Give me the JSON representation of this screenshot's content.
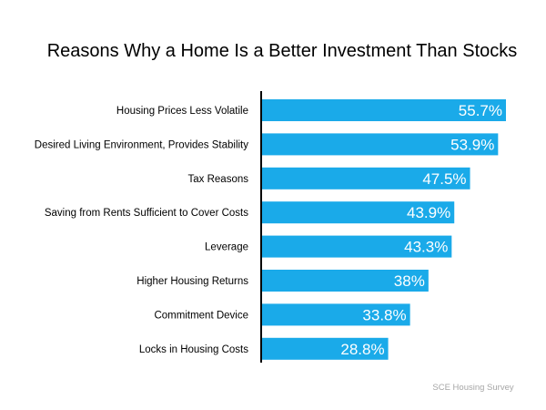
{
  "chart_data": {
    "type": "bar",
    "orientation": "horizontal",
    "title": "Reasons Why a Home Is a Better Investment Than Stocks",
    "categories": [
      "Housing Prices Less Volatile",
      "Desired Living Environment, Provides Stability",
      "Tax Reasons",
      "Saving from Rents Sufficient to Cover Costs",
      "Leverage",
      "Higher Housing Returns",
      "Commitment Device",
      "Locks in Housing Costs"
    ],
    "values": [
      55.7,
      53.9,
      47.5,
      43.9,
      43.3,
      38,
      33.8,
      28.8
    ],
    "data_labels": [
      "55.7%",
      "53.9%",
      "47.5%",
      "43.9%",
      "43.3%",
      "38%",
      "33.8%",
      "28.8%"
    ],
    "xlim": [
      0,
      65
    ],
    "grid": false,
    "legend": "none",
    "bar_color": "#1AAAE9",
    "axis_color": "#000000",
    "source": "SCE Housing Survey"
  }
}
